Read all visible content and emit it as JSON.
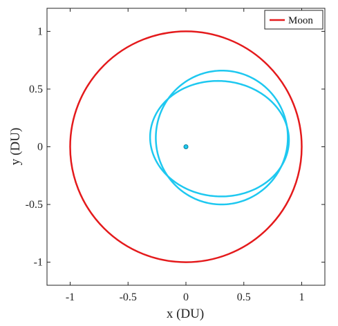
{
  "chart_data": {
    "type": "line",
    "xlabel": "x (DU)",
    "ylabel": "y (DU)",
    "xlim": [
      -1.2,
      1.2
    ],
    "ylim": [
      -1.2,
      1.2
    ],
    "xticks": [
      -1,
      -0.5,
      0,
      0.5,
      1
    ],
    "yticks": [
      -1,
      -0.5,
      0,
      0.5,
      1
    ],
    "x_tick_labels": [
      "-1",
      "-0.5",
      "0",
      "0.5",
      "1"
    ],
    "y_tick_labels": [
      "-1",
      "-0.5",
      "0",
      "0.5",
      "1"
    ],
    "grid": false,
    "legend": {
      "position": "top-right",
      "entries": [
        "Moon"
      ]
    },
    "series": [
      {
        "name": "Moon",
        "kind": "circle",
        "center": [
          0,
          0
        ],
        "radius": 1.0,
        "color": "#e41a1c"
      },
      {
        "kind": "orbit",
        "color": "#1ec8f0",
        "loops": [
          {
            "center": [
              0.29,
              0.07
            ],
            "rx": 0.6,
            "ry": 0.5,
            "rotation_deg": -4
          },
          {
            "center": [
              0.31,
              0.08
            ],
            "rx": 0.57,
            "ry": 0.58,
            "rotation_deg": -6
          }
        ]
      },
      {
        "kind": "marker",
        "x": [
          0
        ],
        "y": [
          0
        ],
        "color": "#1ec8f0"
      }
    ]
  }
}
